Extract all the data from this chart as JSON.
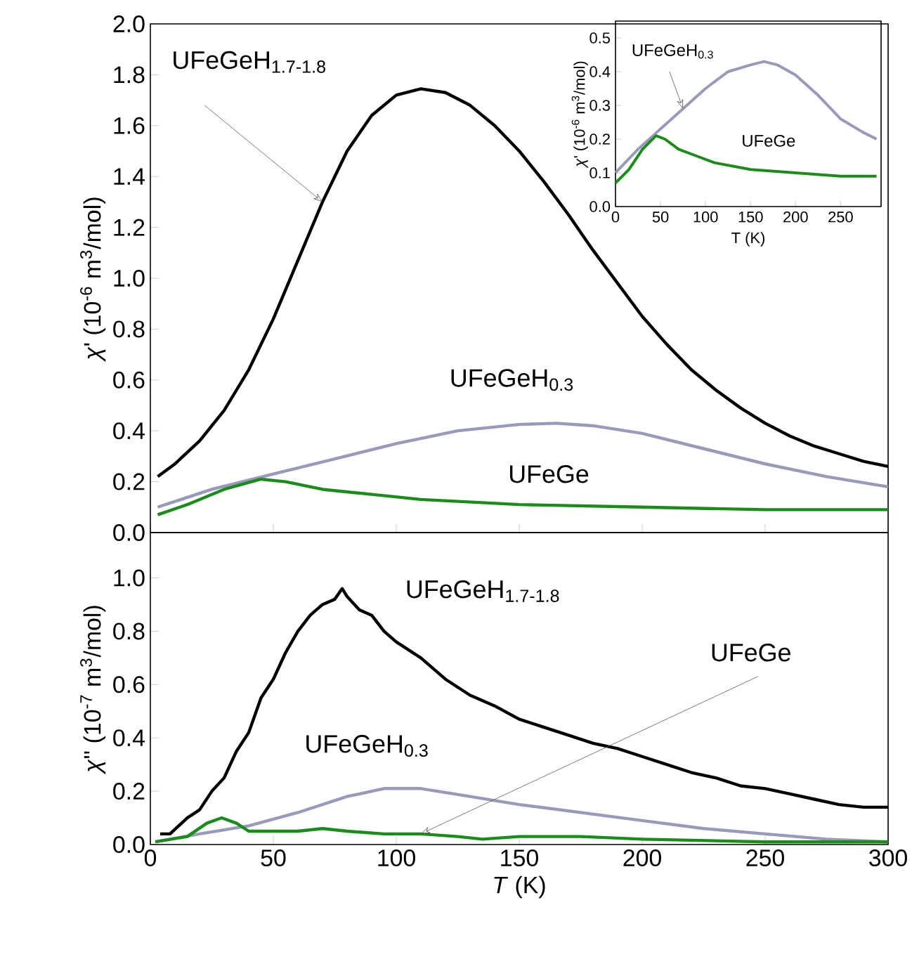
{
  "chart_data": [
    {
      "type": "line",
      "ylabel": "*χ*' (10$^{-6}$ m$^{3}$/mol)",
      "xlim": [
        0,
        300
      ],
      "xticks": [
        0,
        50,
        100,
        150,
        200,
        250,
        300
      ],
      "ylim": [
        0,
        2.0
      ],
      "yticks": [
        {
          "value": 0,
          "label": "0.0"
        },
        {
          "value": 0.2,
          "label": "0.2"
        },
        {
          "value": 0.4,
          "label": "0.4"
        },
        {
          "value": 0.6,
          "label": "0.6"
        },
        {
          "value": 0.8,
          "label": "0.8"
        },
        {
          "value": 1.0,
          "label": "1.0"
        },
        {
          "value": 1.2,
          "label": "1.2"
        },
        {
          "value": 1.4,
          "label": "1.4"
        },
        {
          "value": 1.6,
          "label": "1.6"
        },
        {
          "value": 1.8,
          "label": "1.8"
        },
        {
          "value": 2.0,
          "label": "2.0"
        }
      ],
      "tick_labels": "y",
      "series": [
        {
          "name": "UFeGeH$_{1.7-1.8}$",
          "color": "#000000",
          "x": [
            3,
            10,
            20,
            30,
            40,
            50,
            60,
            70,
            80,
            90,
            100,
            110,
            120,
            130,
            140,
            150,
            160,
            170,
            180,
            190,
            200,
            210,
            220,
            230,
            240,
            250,
            260,
            270,
            280,
            290,
            300
          ],
          "values": [
            0.22,
            0.27,
            0.36,
            0.48,
            0.64,
            0.84,
            1.07,
            1.3,
            1.5,
            1.64,
            1.72,
            1.745,
            1.73,
            1.68,
            1.6,
            1.5,
            1.38,
            1.25,
            1.11,
            0.98,
            0.85,
            0.74,
            0.64,
            0.56,
            0.49,
            0.43,
            0.38,
            0.34,
            0.31,
            0.28,
            0.26
          ]
        },
        {
          "name": "UFeGeH$_{0.3}$",
          "color": "#9999bb",
          "x": [
            3,
            25,
            50,
            75,
            100,
            125,
            150,
            165,
            180,
            200,
            225,
            250,
            275,
            300
          ],
          "values": [
            0.1,
            0.17,
            0.23,
            0.29,
            0.35,
            0.4,
            0.425,
            0.43,
            0.42,
            0.39,
            0.33,
            0.27,
            0.22,
            0.18
          ]
        },
        {
          "name": "UFeGe",
          "color": "#1a8c1a",
          "x": [
            3,
            15,
            30,
            45,
            55,
            70,
            90,
            110,
            150,
            200,
            250,
            300
          ],
          "values": [
            0.07,
            0.11,
            0.17,
            0.21,
            0.2,
            0.17,
            0.15,
            0.13,
            0.11,
            0.1,
            0.09,
            0.09
          ]
        }
      ]
    },
    {
      "type": "line",
      "xlabel": "T (K)",
      "ylabel": "*χ*' (10$^{-6}$ m$^{3}$/mol)",
      "xlim": [
        0,
        295
      ],
      "xticks": [
        0,
        50,
        100,
        150,
        200,
        250
      ],
      "ylim": [
        0,
        0.55
      ],
      "yticks": [
        {
          "value": 0,
          "label": "0.0"
        },
        {
          "value": 0.1,
          "label": "0.1"
        },
        {
          "value": 0.2,
          "label": "0.2"
        },
        {
          "value": 0.3,
          "label": "0.3"
        },
        {
          "value": 0.4,
          "label": "0.4"
        },
        {
          "value": 0.5,
          "label": "0.5"
        }
      ],
      "series": [
        {
          "name": "UFeGeH$_{0.3}$",
          "color": "#9999bb",
          "x": [
            0,
            25,
            50,
            75,
            100,
            125,
            150,
            165,
            180,
            200,
            225,
            250,
            275,
            290
          ],
          "values": [
            0.1,
            0.17,
            0.23,
            0.29,
            0.35,
            0.4,
            0.42,
            0.43,
            0.42,
            0.39,
            0.33,
            0.26,
            0.22,
            0.2
          ]
        },
        {
          "name": "UFeGe",
          "color": "#1a8c1a",
          "x": [
            0,
            15,
            30,
            45,
            55,
            70,
            90,
            110,
            150,
            200,
            250,
            290
          ],
          "values": [
            0.07,
            0.11,
            0.17,
            0.21,
            0.2,
            0.17,
            0.15,
            0.13,
            0.11,
            0.1,
            0.09,
            0.09
          ]
        }
      ]
    },
    {
      "type": "line",
      "xlabel": "*T* (K)",
      "ylabel": "*χ*'' (10$^{-7}$ m$^{3}$/mol)",
      "xlim": [
        0,
        300
      ],
      "xticks": [
        0,
        50,
        100,
        150,
        200,
        250,
        300
      ],
      "ylim": [
        0,
        1.17
      ],
      "yticks": [
        {
          "value": 0,
          "label": "0.0"
        },
        {
          "value": 0.2,
          "label": "0.2"
        },
        {
          "value": 0.4,
          "label": "0.4"
        },
        {
          "value": 0.6,
          "label": "0.6"
        },
        {
          "value": 0.8,
          "label": "0.8"
        },
        {
          "value": 1.0,
          "label": "1.0"
        }
      ],
      "series": [
        {
          "name": "UFeGeH$_{1.7-1.8}$",
          "color": "#000000",
          "x": [
            4,
            8,
            15,
            20,
            25,
            30,
            35,
            40,
            45,
            50,
            55,
            60,
            65,
            70,
            75,
            78,
            80,
            85,
            90,
            95,
            100,
            110,
            120,
            130,
            140,
            150,
            160,
            170,
            180,
            190,
            200,
            210,
            220,
            230,
            240,
            250,
            260,
            270,
            280,
            290,
            300
          ],
          "values": [
            0.04,
            0.04,
            0.1,
            0.13,
            0.2,
            0.25,
            0.35,
            0.42,
            0.55,
            0.62,
            0.72,
            0.8,
            0.86,
            0.9,
            0.92,
            0.96,
            0.93,
            0.88,
            0.86,
            0.8,
            0.76,
            0.7,
            0.62,
            0.56,
            0.52,
            0.47,
            0.44,
            0.41,
            0.38,
            0.36,
            0.33,
            0.3,
            0.27,
            0.25,
            0.22,
            0.21,
            0.19,
            0.17,
            0.15,
            0.14,
            0.14
          ]
        },
        {
          "name": "UFeGeH$_{0.3}$",
          "color": "#9999bb",
          "x": [
            2,
            20,
            40,
            60,
            80,
            95,
            110,
            130,
            150,
            175,
            200,
            225,
            250,
            275,
            300
          ],
          "values": [
            0.01,
            0.04,
            0.07,
            0.12,
            0.18,
            0.21,
            0.21,
            0.18,
            0.15,
            0.12,
            0.09,
            0.06,
            0.04,
            0.02,
            0.01
          ]
        },
        {
          "name": "UFeGe",
          "color": "#1a8c1a",
          "x": [
            2,
            15,
            23,
            29,
            35,
            40,
            50,
            60,
            70,
            80,
            95,
            110,
            125,
            135,
            150,
            175,
            200,
            250,
            300
          ],
          "values": [
            0.01,
            0.03,
            0.08,
            0.1,
            0.08,
            0.05,
            0.05,
            0.05,
            0.06,
            0.05,
            0.04,
            0.04,
            0.03,
            0.02,
            0.03,
            0.03,
            0.02,
            0.01,
            0.01
          ]
        }
      ]
    }
  ]
}
